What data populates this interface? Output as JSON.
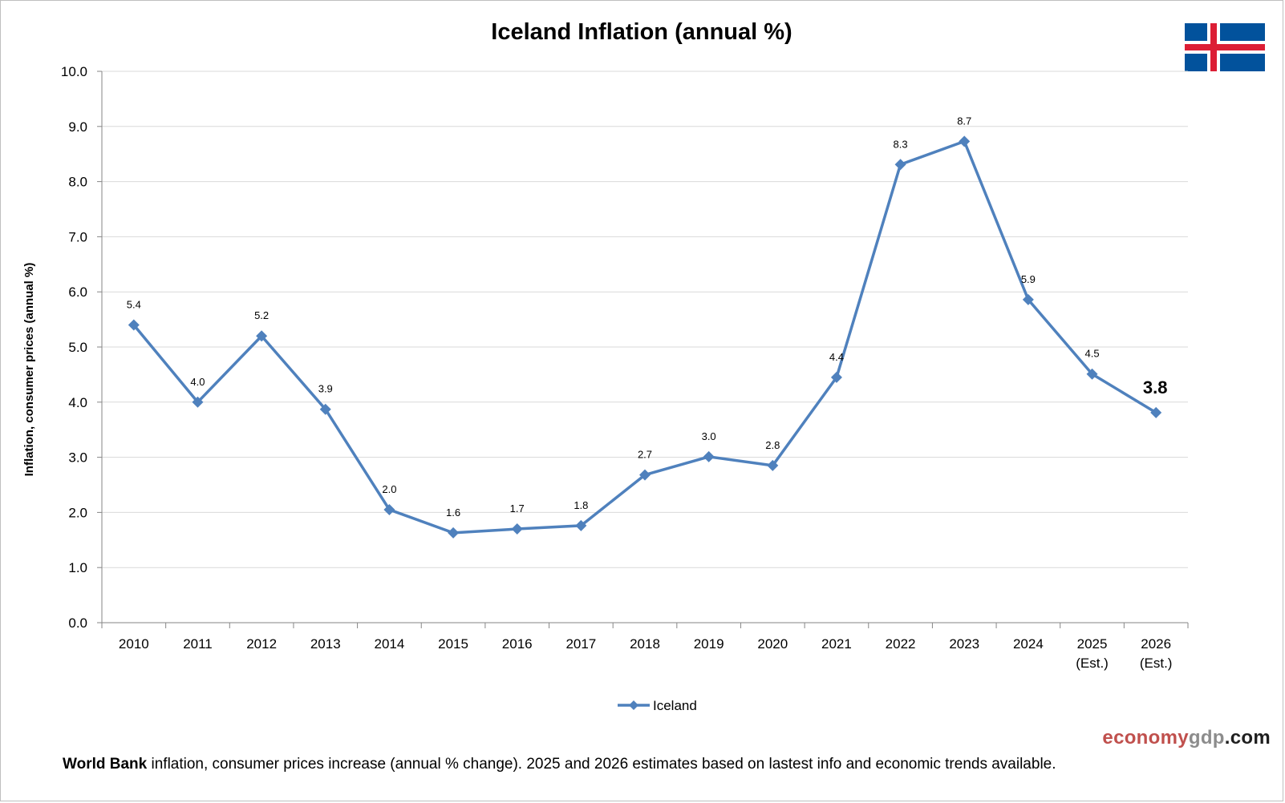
{
  "chart_data": {
    "type": "line",
    "title": "Iceland Inflation (annual %)",
    "ylabel": "Inflation, consumer prices (annual %)",
    "xlabel": "",
    "ylim": [
      0,
      10
    ],
    "yticks": [
      "0.0",
      "1.0",
      "2.0",
      "3.0",
      "4.0",
      "5.0",
      "6.0",
      "7.0",
      "8.0",
      "9.0",
      "10.0"
    ],
    "categories": [
      [
        "2010"
      ],
      [
        "2011"
      ],
      [
        "2012"
      ],
      [
        "2013"
      ],
      [
        "2014"
      ],
      [
        "2015"
      ],
      [
        "2016"
      ],
      [
        "2017"
      ],
      [
        "2018"
      ],
      [
        "2019"
      ],
      [
        "2020"
      ],
      [
        "2021"
      ],
      [
        "2022"
      ],
      [
        "2023"
      ],
      [
        "2024"
      ],
      [
        "2025",
        "(Est.)"
      ],
      [
        "2026",
        "(Est.)"
      ]
    ],
    "series": [
      {
        "name": "Iceland",
        "color": "#4f81bd",
        "values": [
          5.4,
          4.0,
          5.2,
          3.87,
          2.05,
          1.63,
          1.7,
          1.76,
          2.68,
          3.01,
          2.85,
          4.45,
          8.31,
          8.73,
          5.86,
          4.51,
          3.81
        ],
        "labels": [
          "5.4",
          "4.0",
          "5.2",
          "3.9",
          "2.0",
          "1.6",
          "1.7",
          "1.8",
          "2.7",
          "3.0",
          "2.8",
          "4.4",
          "8.3",
          "8.7",
          "5.9",
          "4.5",
          "3.8"
        ]
      }
    ],
    "grid": true,
    "legend": "bottom-center"
  },
  "flag": {
    "name": "iceland-flag",
    "blue": "#02529c",
    "white": "#ffffff",
    "red": "#dc1e35"
  },
  "brand": {
    "part1": "economy",
    "part2": "gdp",
    "part3": ".com"
  },
  "footnote": {
    "bold": "World Bank",
    "text": " inflation, consumer prices increase (annual % change).  2025 and 2026 estimates based on lastest info and economic trends available."
  }
}
